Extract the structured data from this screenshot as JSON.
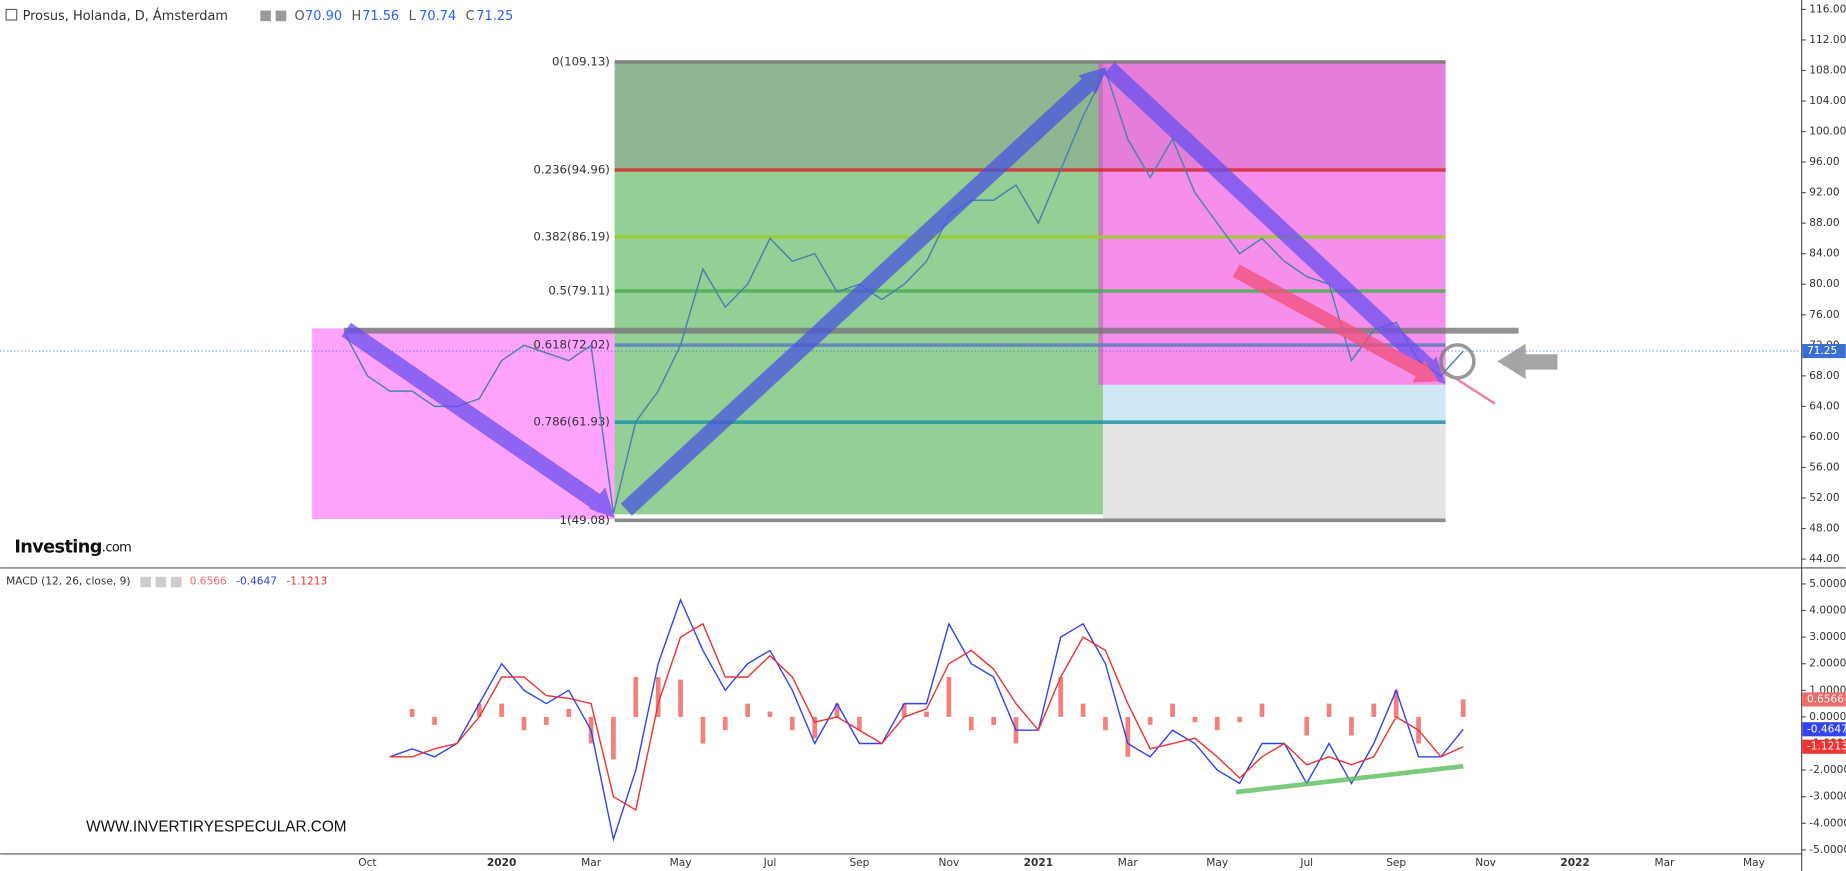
{
  "header": {
    "title": "Prosus, Holanda, D, Ámsterdam",
    "ohlc": [
      {
        "key": "O",
        "value": "70.90"
      },
      {
        "key": "H",
        "value": "71.56"
      },
      {
        "key": "L",
        "value": "70.74"
      },
      {
        "key": "C",
        "value": "71.25"
      }
    ]
  },
  "logo": {
    "brand": "Investing",
    "suffix": ".com"
  },
  "watermark": "WWW.INVERTIRYESPECULAR.COM",
  "chart_data": [
    {
      "type": "line",
      "color": "#4a7fb0",
      "categories": [
        null,
        "Oct",
        null,
        null,
        null,
        null,
        null,
        "2020",
        null,
        null,
        null,
        "Mar",
        null,
        null,
        null,
        "May",
        null,
        null,
        null,
        "Jul",
        null,
        null,
        null,
        "Sep",
        null,
        null,
        null,
        "Nov",
        null,
        null,
        null,
        "2021",
        null,
        null,
        null,
        "Mar",
        null,
        null,
        null,
        "May",
        null,
        null,
        null,
        "Jul",
        null,
        null,
        null,
        "Sep",
        null,
        null,
        null,
        "Nov",
        null,
        null,
        null,
        "2022",
        null,
        null,
        null,
        "Mar",
        null,
        null,
        null,
        "May"
      ],
      "values": [
        73.5,
        68,
        66,
        66,
        64,
        64,
        65,
        70,
        72,
        71,
        70,
        72,
        50,
        62,
        66,
        72,
        82,
        77,
        80,
        86,
        83,
        84,
        79,
        80,
        78,
        80,
        83,
        89,
        91,
        91,
        93,
        88,
        95,
        102,
        108,
        99,
        94,
        99,
        92,
        88,
        84,
        86,
        83,
        81,
        80,
        70,
        74,
        75,
        70,
        68,
        71.25,
        null,
        null,
        null,
        null,
        null,
        null,
        null,
        null,
        null,
        null,
        null,
        null,
        null
      ],
      "ylim": [
        42.92,
        117.23
      ],
      "yticks": [
        {
          "value": 116,
          "label": "116.00"
        },
        {
          "value": 112,
          "label": "112.00"
        },
        {
          "value": 108,
          "label": "108.00"
        },
        {
          "value": 104,
          "label": "104.00"
        },
        {
          "value": 100,
          "label": "100.00"
        },
        {
          "value": 96,
          "label": "96.00"
        },
        {
          "value": 92,
          "label": "92.00"
        },
        {
          "value": 88,
          "label": "88.00"
        },
        {
          "value": 84,
          "label": "84.00"
        },
        {
          "value": 80,
          "label": "80.00"
        },
        {
          "value": 76,
          "label": "76.00"
        },
        {
          "value": 72,
          "label": "72.00"
        },
        {
          "value": 68,
          "label": "68.00"
        },
        {
          "value": 64,
          "label": "64.00"
        },
        {
          "value": 60,
          "label": "60.00"
        },
        {
          "value": 56,
          "label": "56.00"
        },
        {
          "value": 52,
          "label": "52.00"
        },
        {
          "value": 48,
          "label": "48.00"
        },
        {
          "value": 44,
          "label": "44.00"
        }
      ],
      "fib_levels": [
        {
          "label": "0(109.13)",
          "value": 109.13,
          "color": "#787878"
        },
        {
          "label": "0.236(94.96)",
          "value": 94.96,
          "color": "#d32f2f"
        },
        {
          "label": "0.382(86.19)",
          "value": 86.19,
          "color": "#9acd32"
        },
        {
          "label": "0.5(79.11)",
          "value": 79.11,
          "color": "#4caf50"
        },
        {
          "label": "0.618(72.02)",
          "value": 72.02,
          "color": "#5b7fbf"
        },
        {
          "label": "0.786(61.93)",
          "value": 61.93,
          "color": "#2196a0"
        },
        {
          "label": "1(49.08)",
          "value": 49.08,
          "color": "#787878"
        }
      ]
    },
    {
      "type": "combo",
      "title": "MACD (12, 26, close, 9)",
      "categories": [
        null,
        "Oct",
        null,
        null,
        null,
        null,
        null,
        "2020",
        null,
        null,
        null,
        "Mar",
        null,
        null,
        null,
        "May",
        null,
        null,
        null,
        "Jul",
        null,
        null,
        null,
        "Sep",
        null,
        null,
        null,
        "Nov",
        null,
        null,
        null,
        "2021",
        null,
        null,
        null,
        "Mar",
        null,
        null,
        null,
        "May",
        null,
        null,
        null,
        "Jul",
        null,
        null,
        null,
        "Sep",
        null,
        null,
        null,
        "Nov",
        null,
        null,
        null,
        "2022",
        null,
        null,
        null,
        "Mar",
        null,
        null,
        null,
        "May"
      ],
      "series": [
        {
          "type": "bar",
          "color": "#f06a6a",
          "values": [
            null,
            null,
            0,
            0.3,
            -0.3,
            0,
            0.5,
            0.5,
            -0.5,
            -0.3,
            0.3,
            -1.0,
            -1.6,
            1.5,
            1.5,
            1.4,
            -1.0,
            -0.5,
            0.5,
            0.2,
            -0.5,
            -0.8,
            0.5,
            -0.5,
            0,
            0.5,
            0.2,
            1.5,
            -0.5,
            -0.3,
            -1.0,
            0,
            1.5,
            0.5,
            -0.5,
            -1.5,
            -0.3,
            0.5,
            -0.2,
            -0.5,
            -0.2,
            0.5,
            0,
            -0.7,
            0.5,
            -0.7,
            0.5,
            1.0,
            -1.0,
            0,
            0.6566,
            null,
            null,
            null,
            null,
            null,
            null,
            null,
            null,
            null,
            null,
            null,
            null,
            null
          ]
        },
        {
          "type": "line",
          "color": "#3344ee",
          "values": [
            null,
            null,
            -1.5,
            -1.2,
            -1.5,
            -1.0,
            0.5,
            2.0,
            1.0,
            0.5,
            1.0,
            -0.5,
            -4.6,
            -2.0,
            2.0,
            4.4,
            2.5,
            1.0,
            2.0,
            2.5,
            1.0,
            -1.0,
            0.5,
            -1.0,
            -1.0,
            0.5,
            0.5,
            3.5,
            2.0,
            1.5,
            -0.5,
            -0.5,
            3.0,
            3.5,
            2.0,
            -1.0,
            -1.5,
            -0.5,
            -1.0,
            -2.0,
            -2.5,
            -1.0,
            -1.0,
            -2.5,
            -1.0,
            -2.5,
            -1.0,
            1.0,
            -1.5,
            -1.5,
            -0.4647,
            null,
            null,
            null,
            null,
            null,
            null,
            null,
            null,
            null,
            null,
            null,
            null,
            null
          ]
        },
        {
          "type": "line",
          "color": "#ee3333",
          "values": [
            null,
            null,
            -1.5,
            -1.5,
            -1.2,
            -1.0,
            0,
            1.5,
            1.5,
            0.8,
            0.7,
            0.5,
            -3.0,
            -3.5,
            0.5,
            3.0,
            3.5,
            1.5,
            1.5,
            2.3,
            1.5,
            -0.2,
            0,
            -0.5,
            -1.0,
            0,
            0.3,
            2.0,
            2.5,
            1.8,
            0.5,
            -0.5,
            1.5,
            3.0,
            2.5,
            0.5,
            -1.2,
            -1.0,
            -0.8,
            -1.5,
            -2.3,
            -1.5,
            -1.0,
            -1.8,
            -1.5,
            -1.8,
            -1.5,
            0,
            -0.5,
            -1.5,
            -1.1213,
            null,
            null,
            null,
            null,
            null,
            null,
            null,
            null,
            null,
            null,
            null,
            null,
            null
          ]
        }
      ],
      "ylim": [
        -5.13,
        5.58
      ],
      "yticks": [
        {
          "value": 5,
          "label": "5.0000"
        },
        {
          "value": 4,
          "label": "4.0000"
        },
        {
          "value": 3,
          "label": "3.0000"
        },
        {
          "value": 2,
          "label": "2.0000"
        },
        {
          "value": 1,
          "label": "1.0000"
        },
        {
          "value": 0,
          "label": "0.0000"
        },
        {
          "value": -1,
          "label": "-1.0000"
        },
        {
          "value": -2,
          "label": "-2.0000"
        },
        {
          "value": -3,
          "label": "-3.0000"
        },
        {
          "value": -4,
          "label": "-4.0000"
        },
        {
          "value": -5,
          "label": "-5.0000"
        }
      ]
    }
  ]
}
